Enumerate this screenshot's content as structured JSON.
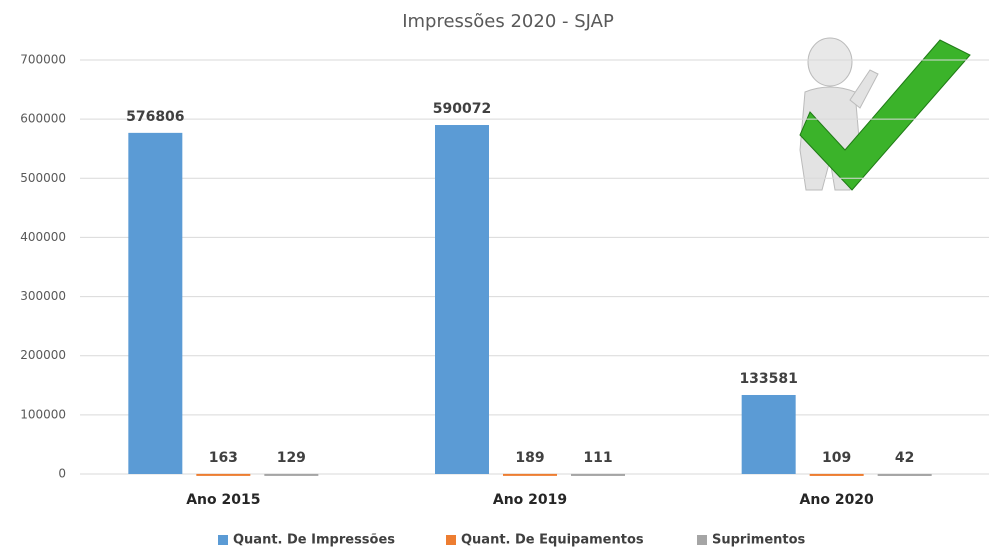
{
  "chart_data": {
    "type": "bar",
    "title": "Impressões 2020 - SJAP",
    "categories": [
      "Ano 2015",
      "Ano 2019",
      "Ano 2020"
    ],
    "series": [
      {
        "name": "Quant. De Impressões",
        "color": "#5b9bd5",
        "values": [
          576806,
          590072,
          133581
        ]
      },
      {
        "name": "Quant. De Equipamentos",
        "color": "#ed7d31",
        "values": [
          163,
          189,
          109
        ]
      },
      {
        "name": "Suprimentos",
        "color": "#a5a5a5",
        "values": [
          129,
          111,
          42
        ]
      }
    ],
    "ylim": [
      0,
      700000
    ],
    "yticks": [
      0,
      100000,
      200000,
      300000,
      400000,
      500000,
      600000,
      700000
    ],
    "grid": true,
    "legend": "bottom"
  }
}
